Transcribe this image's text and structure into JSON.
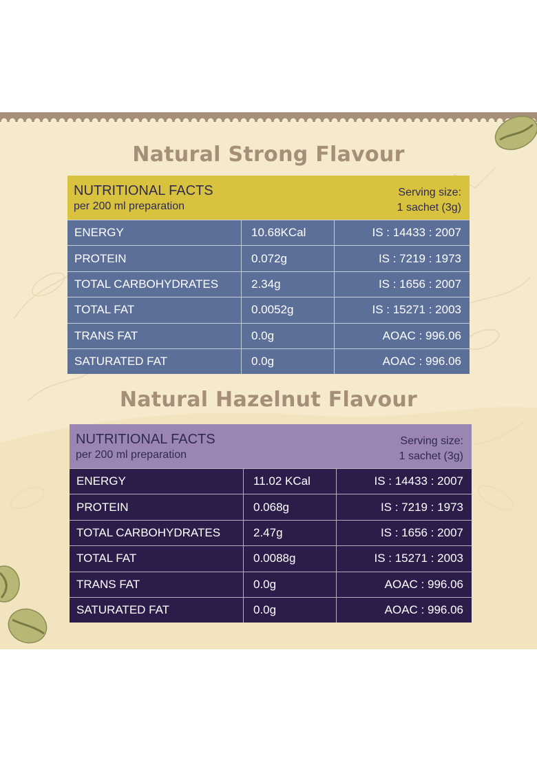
{
  "colors": {
    "panel_bg": "#f5eacb",
    "heading": "#a58f78",
    "table1_header": "#d9c23e",
    "table1_body": "#5b6f99",
    "table2_header": "#9b85b3",
    "table2_body": "#2c1c4a"
  },
  "tables": [
    {
      "heading": "Natural Strong Flavour",
      "title": "NUTRITIONAL FACTS",
      "subtitle": "per 200 ml preparation",
      "serving_label": "Serving size:",
      "serving_value": "1 sachet (3g)",
      "rows": [
        {
          "nutrient": "ENERGY",
          "amount": "10.68KCal",
          "method": "IS : 14433 : 2007"
        },
        {
          "nutrient": "PROTEIN",
          "amount": "0.072g",
          "method": "IS : 7219 : 1973"
        },
        {
          "nutrient": "TOTAL CARBOHYDRATES",
          "amount": "2.34g",
          "method": "IS : 1656 : 2007"
        },
        {
          "nutrient": "TOTAL FAT",
          "amount": "0.0052g",
          "method": "IS : 15271 : 2003"
        },
        {
          "nutrient": "TRANS FAT",
          "amount": "0.0g",
          "method": "AOAC : 996.06"
        },
        {
          "nutrient": "SATURATED FAT",
          "amount": "0.0g",
          "method": "AOAC : 996.06"
        }
      ]
    },
    {
      "heading": "Natural Hazelnut Flavour",
      "title": "NUTRITIONAL FACTS",
      "subtitle": "per 200 ml preparation",
      "serving_label": "Serving size:",
      "serving_value": "1 sachet (3g)",
      "rows": [
        {
          "nutrient": "ENERGY",
          "amount": "11.02 KCal",
          "method": "IS : 14433 : 2007"
        },
        {
          "nutrient": "PROTEIN",
          "amount": "0.068g",
          "method": "IS : 7219 : 1973"
        },
        {
          "nutrient": "TOTAL CARBOHYDRATES",
          "amount": "2.47g",
          "method": "IS : 1656 : 2007"
        },
        {
          "nutrient": "TOTAL FAT",
          "amount": "0.0088g",
          "method": "IS : 15271 : 2003"
        },
        {
          "nutrient": "TRANS FAT",
          "amount": "0.0g",
          "method": "AOAC : 996.06"
        },
        {
          "nutrient": "SATURATED FAT",
          "amount": "0.0g",
          "method": "AOAC : 996.06"
        }
      ]
    }
  ],
  "decorations": {
    "beans": [
      "coffee-bean-icon",
      "coffee-bean-icon",
      "coffee-bean-icon"
    ],
    "background": "coffee-plant-sketch"
  }
}
